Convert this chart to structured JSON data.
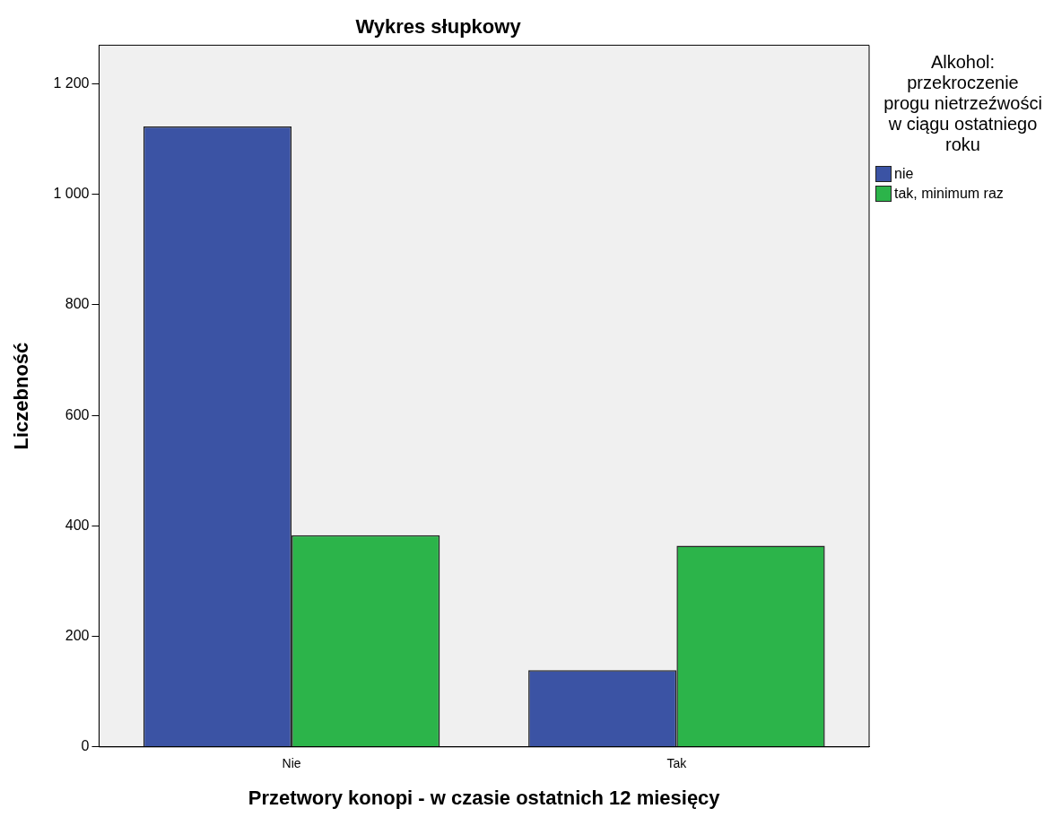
{
  "chart_data": {
    "type": "bar",
    "title": "Wykres słupkowy",
    "xlabel": "Przetwory konopi - w czasie ostatnich 12 miesięcy",
    "ylabel": "Liczebność",
    "legend_title": "Alkohol: przekroczenie progu nietrzeźwości w ciągu ostatniego roku",
    "legend": "right",
    "categories": [
      "Nie",
      "Tak"
    ],
    "series": [
      {
        "name": "nie",
        "color": "#3b53a4",
        "values": [
          1123,
          139
        ]
      },
      {
        "name": "tak, minimum raz",
        "color": "#2cb44a",
        "values": [
          383,
          364
        ]
      }
    ],
    "ylim": [
      0,
      1270
    ],
    "yticks": [
      0,
      200,
      400,
      600,
      800,
      {
        "value": 1000,
        "label": "1 000"
      },
      {
        "value": 1200,
        "label": "1 200"
      }
    ]
  }
}
